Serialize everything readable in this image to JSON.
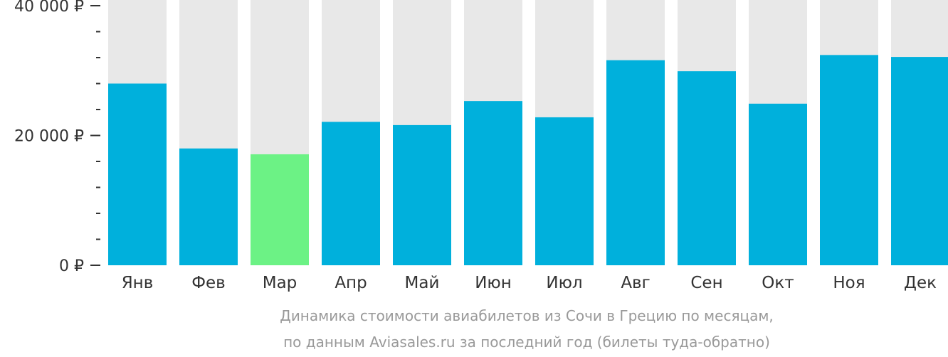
{
  "chart_data": {
    "type": "bar",
    "categories": [
      "Янв",
      "Фев",
      "Мар",
      "Апр",
      "Май",
      "Июн",
      "Июл",
      "Авг",
      "Сен",
      "Окт",
      "Ноя",
      "Дек"
    ],
    "values": [
      28000,
      18000,
      17100,
      22100,
      21600,
      25300,
      22800,
      31600,
      29900,
      24900,
      32400,
      32100
    ],
    "highlight_index": 2,
    "ylim": [
      0,
      40000
    ],
    "yticks": [
      {
        "value": 0,
        "label": "0 ₽"
      },
      {
        "value": 20000,
        "label": "20 000 ₽"
      },
      {
        "value": 40000,
        "label": "40 000 ₽"
      }
    ],
    "minor_tick_step": 4000,
    "background_bars": true,
    "grid": false,
    "legend": "none",
    "title": "",
    "xlabel": "",
    "ylabel": "",
    "caption_lines": [
      "Динамика стоимости авиабилетов из Сочи в Грецию по месяцам,",
      "по данным Aviasales.ru за последний год (билеты туда-обратно)"
    ],
    "colors": {
      "bar": "#00b0dc",
      "highlight": "#6cf285",
      "background_bar": "#e8e8e8",
      "axis": "#333333",
      "caption": "#999999"
    }
  }
}
